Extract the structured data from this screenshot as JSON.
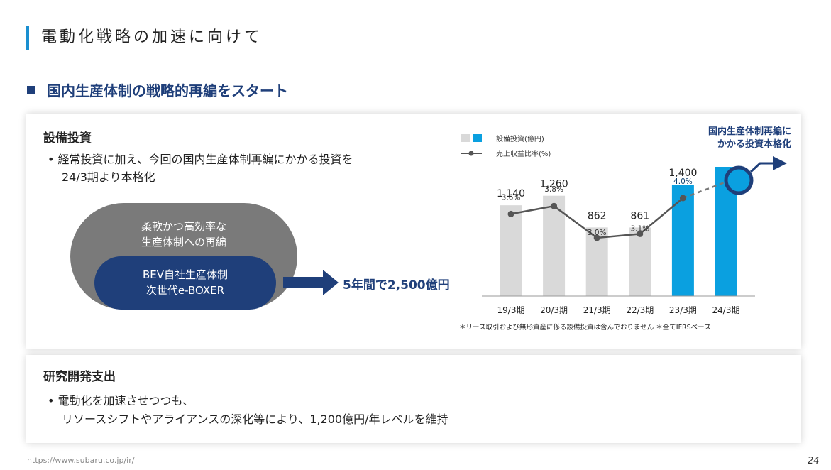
{
  "header": {
    "title": "電動化戦略の加速に向けて"
  },
  "section": {
    "heading": "国内生産体制の戦略的再編をスタート"
  },
  "capex": {
    "title": "設備投資",
    "bullet_line1": "• 経常投資に加え、今回の国内生産体制再編にかかる投資を",
    "bullet_line2": "24/3期より本格化",
    "outer_pill_line1": "柔軟かつ高効率な",
    "outer_pill_line2": "生産体制への再編",
    "inner_pill_line1": "BEV自社生産体制",
    "inner_pill_line2": "次世代e-BOXER",
    "arrow_label": "5年間で2,500億円"
  },
  "rnd": {
    "title": "研究開発支出",
    "bullet_line1": "• 電動化を加速させつつも、",
    "bullet_line2": "リソースシフトやアライアンスの深化等により、1,200億円/年レベルを維持"
  },
  "chart_data": {
    "type": "bar",
    "categories": [
      "19/3期",
      "20/3期",
      "21/3期",
      "22/3期",
      "23/3期",
      "24/3期"
    ],
    "series": [
      {
        "name": "設備投資(億円)",
        "kind": "bar",
        "values": [
          1140,
          1260,
          862,
          861,
          1400,
          null
        ],
        "labels": [
          "1,140",
          "1,260",
          "862",
          "861",
          "1,400",
          ""
        ]
      },
      {
        "name": "売上収益比率(%)",
        "kind": "line",
        "values": [
          3.6,
          3.8,
          3.0,
          3.1,
          4.0,
          null
        ],
        "labels": [
          "3.6%",
          "3.8%",
          "3.0%",
          "3.1%",
          "4.0%",
          ""
        ]
      }
    ],
    "legend": [
      "設備投資(億円)",
      "売上収益比率(%)"
    ],
    "annotation_line1": "国内生産体制再編に",
    "annotation_line2": "かかる投資本格化",
    "footnote": "＊リース取引および無形資産に係る設備投資は含んでおりません ＊全てIFRSベース",
    "colors": {
      "past_bar": "#d9d9d9",
      "highlight_bar": "#0aa0e0",
      "line": "#555555",
      "annotation": "#1f3f7a"
    }
  },
  "footer": {
    "url": "https://www.subaru.co.jp/ir/",
    "page": "24"
  }
}
